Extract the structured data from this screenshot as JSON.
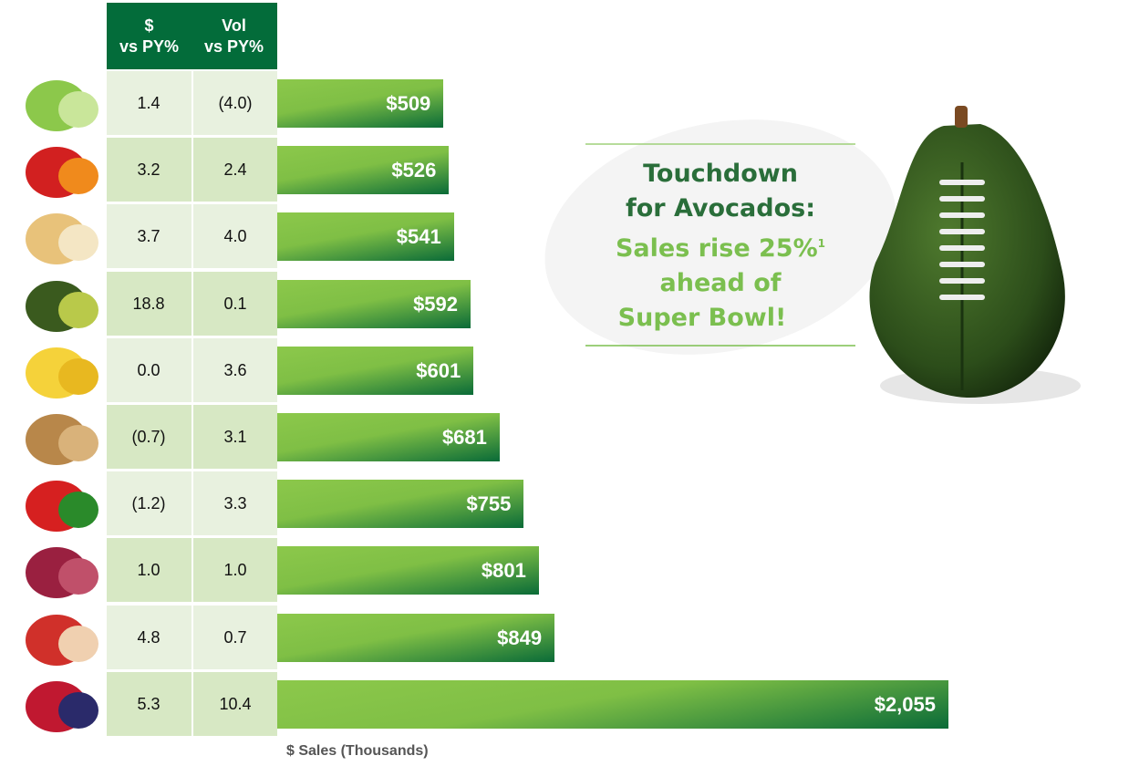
{
  "chart_data": {
    "type": "bar",
    "orientation": "horizontal",
    "xlabel": "$ Sales (Thousands)",
    "columns": [
      "$\nvs PY%",
      "Vol\nvs PY%"
    ],
    "categories": [
      "lettuce",
      "peppers",
      "onions",
      "avocados",
      "bananas",
      "potatoes",
      "tomatoes",
      "grapes",
      "apples",
      "berries"
    ],
    "values": [
      509,
      526,
      541,
      592,
      601,
      681,
      755,
      801,
      849,
      2055
    ],
    "value_labels": [
      "$509",
      "$526",
      "$541",
      "$592",
      "$601",
      "$681",
      "$755",
      "$801",
      "$849",
      "$2,055"
    ],
    "dollar_vs_py": [
      "1.4",
      "3.2",
      "3.7",
      "18.8",
      "0.0",
      "(0.7)",
      "(1.2)",
      "1.0",
      "4.8",
      "5.3"
    ],
    "vol_vs_py": [
      "(4.0)",
      "2.4",
      "4.0",
      "0.1",
      "3.6",
      "3.1",
      "3.3",
      "1.0",
      "0.7",
      "10.4"
    ],
    "xlim": [
      0,
      2055
    ],
    "colors": {
      "header": "#036c3a",
      "bar_light": "#8cc84b",
      "bar_dark": "#0a6b38",
      "row_a": "#e8f1df",
      "row_b": "#d7e8c4"
    }
  },
  "callout": {
    "line1": "Touchdown",
    "line2": "for Avocados:",
    "line3": "Sales rise 25%",
    "sup": "1",
    "line4": "ahead of",
    "line5": "Super Bowl!",
    "dark": "#2a6e3a",
    "light": "#7bbf4f"
  }
}
